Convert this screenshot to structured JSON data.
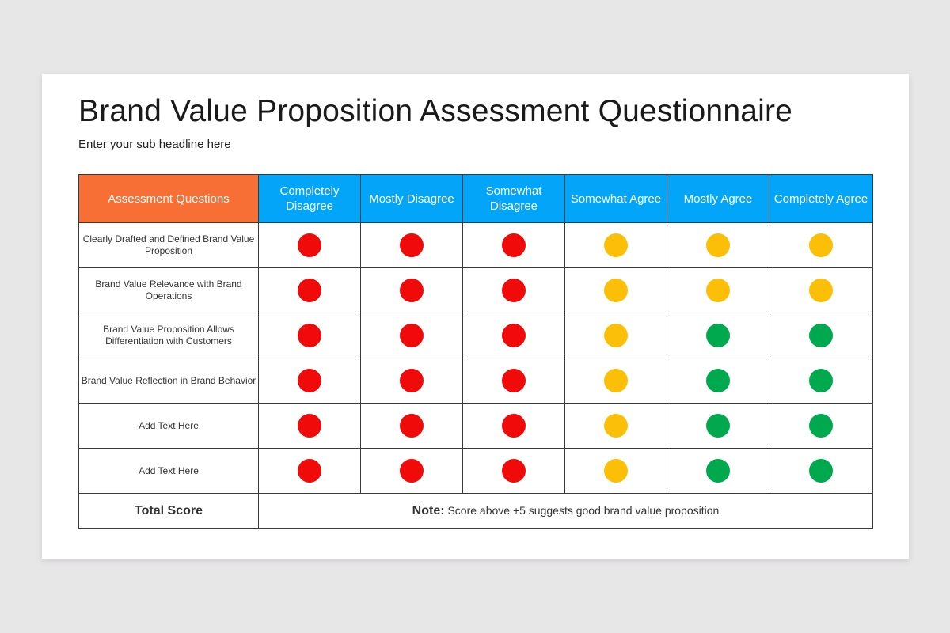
{
  "slide": {
    "title": "Brand Value Proposition Assessment Questionnaire",
    "subtitle": "Enter your sub headline here"
  },
  "table": {
    "question_header": "Assessment Questions",
    "rating_headers": [
      "Completely Disagree",
      "Mostly Disagree",
      "Somewhat Disagree",
      "Somewhat Agree",
      "Mostly Agree",
      "Completely Agree"
    ],
    "colors": {
      "red": "#f10a0a",
      "yellow": "#fcbf08",
      "green": "#01a94e",
      "header_orange": "#f86f35",
      "header_blue": "#02a5f7"
    },
    "rows": [
      {
        "question": "Clearly Drafted and Defined Brand Value Proposition",
        "dots": [
          "red",
          "red",
          "red",
          "yellow",
          "yellow",
          "yellow"
        ]
      },
      {
        "question": "Brand Value Relevance with Brand Operations",
        "dots": [
          "red",
          "red",
          "red",
          "yellow",
          "yellow",
          "yellow"
        ]
      },
      {
        "question": "Brand Value Proposition Allows Differentiation with Customers",
        "dots": [
          "red",
          "red",
          "red",
          "yellow",
          "green",
          "green"
        ]
      },
      {
        "question": "Brand Value Reflection in Brand Behavior",
        "dots": [
          "red",
          "red",
          "red",
          "yellow",
          "green",
          "green"
        ]
      },
      {
        "question": "Add Text Here",
        "dots": [
          "red",
          "red",
          "red",
          "yellow",
          "green",
          "green"
        ]
      },
      {
        "question": "Add Text Here",
        "dots": [
          "red",
          "red",
          "red",
          "yellow",
          "green",
          "green"
        ]
      }
    ],
    "total_label": "Total Score",
    "note_label": "Note:",
    "note_text": " Score above +5 suggests good brand value proposition"
  }
}
